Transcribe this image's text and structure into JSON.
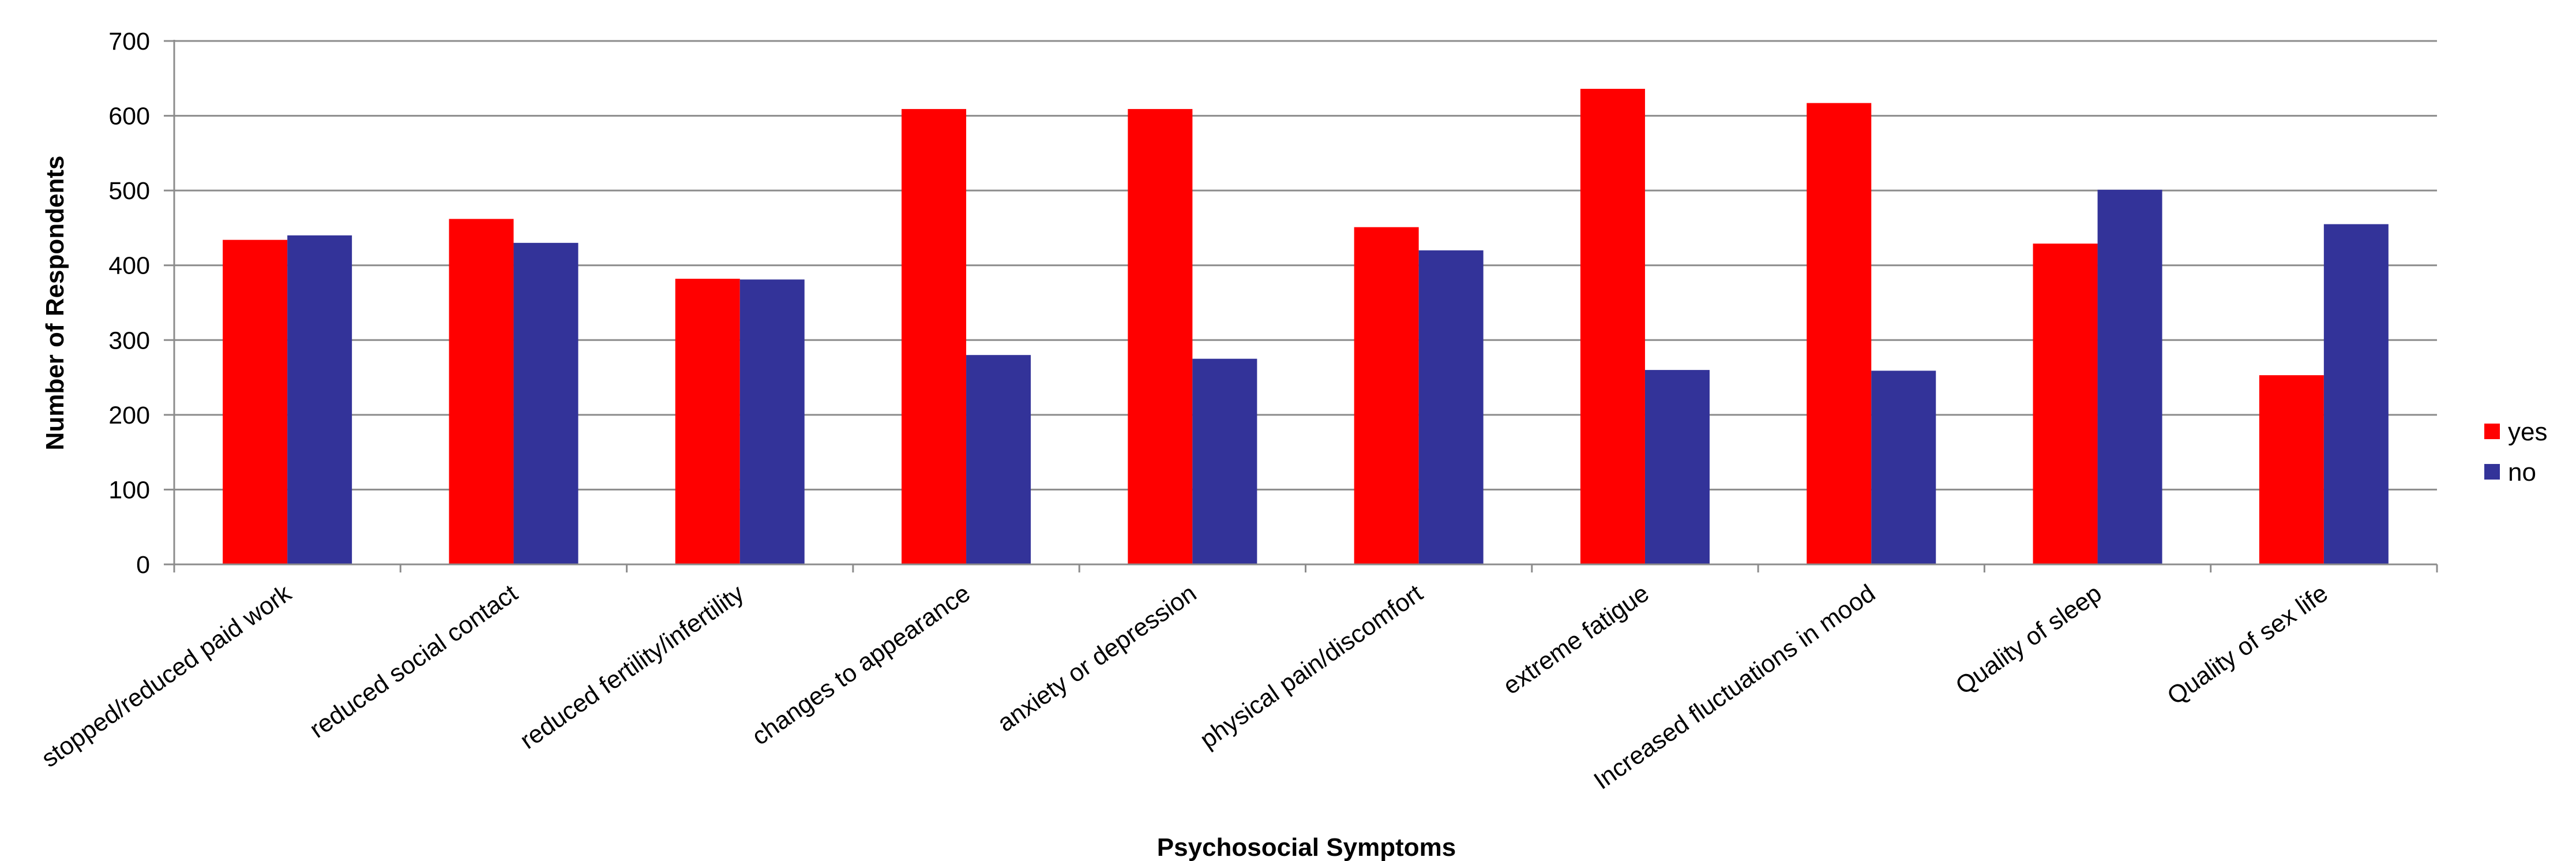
{
  "chart_data": {
    "type": "bar",
    "title": "",
    "xlabel": "Psychosocial Symptoms",
    "ylabel": "Number of Respondents",
    "ylim": [
      0,
      700
    ],
    "yticks": [
      0,
      100,
      200,
      300,
      400,
      500,
      600,
      700
    ],
    "grid": true,
    "legend_position": "right",
    "categories": [
      "stopped/reduced paid work",
      "reduced social contact",
      "reduced fertility/infertility",
      "changes to appearance",
      "anxiety or depression",
      "physical pain/discomfort",
      "extreme fatigue",
      "Increased fluctuations in mood",
      "Quality of sleep",
      "Quality of sex life"
    ],
    "series": [
      {
        "name": "yes",
        "color": "#ff0000",
        "values": [
          434,
          462,
          382,
          609,
          609,
          451,
          636,
          617,
          429,
          253
        ]
      },
      {
        "name": "no",
        "color": "#333399",
        "values": [
          440,
          430,
          381,
          280,
          275,
          420,
          260,
          259,
          501,
          455
        ]
      }
    ]
  }
}
